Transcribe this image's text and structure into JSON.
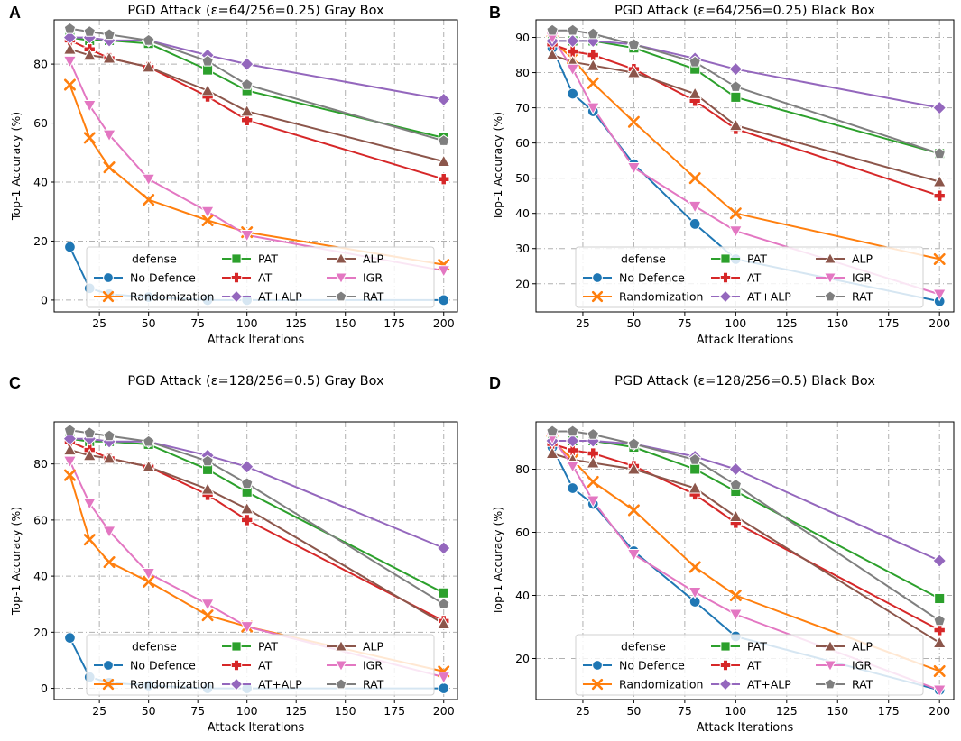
{
  "colors": {
    "No Defence": "#1f77b4",
    "Randomization": "#ff7f0e",
    "PAT": "#2ca02c",
    "AT": "#d62728",
    "AT+ALP": "#9467bd",
    "ALP": "#8c564b",
    "IGR": "#e377c2",
    "RAT": "#7f7f7f"
  },
  "markers": {
    "No Defence": "circle",
    "Randomization": "x",
    "PAT": "square",
    "AT": "plus",
    "AT+ALP": "diamond",
    "ALP": "triangle-up",
    "IGR": "triangle-down",
    "RAT": "pentagon"
  },
  "legend_title": "defense",
  "chart_data": [
    {
      "panel": "A",
      "type": "line",
      "title": "PGD Attack (ε=64/256=0.25) Gray Box",
      "xlabel": "Attack Iterations",
      "ylabel": "Top-1 Accuracy (%)",
      "x": [
        10,
        20,
        30,
        50,
        80,
        100,
        200
      ],
      "xticks": [
        25,
        50,
        75,
        100,
        125,
        150,
        175,
        200
      ],
      "yticks": [
        0,
        20,
        40,
        60,
        80
      ],
      "xlim": [
        2,
        207
      ],
      "ylim": [
        -4,
        95
      ],
      "grid": true,
      "legend_loc": "lower center",
      "series": [
        {
          "name": "No Defence",
          "values": [
            18,
            4,
            2,
            1,
            0,
            0,
            0
          ]
        },
        {
          "name": "Randomization",
          "values": [
            73,
            55,
            45,
            34,
            27,
            23,
            12
          ]
        },
        {
          "name": "PAT",
          "values": [
            89,
            88,
            88,
            87,
            78,
            71,
            55
          ]
        },
        {
          "name": "AT",
          "values": [
            88,
            85,
            82,
            79,
            69,
            61,
            41
          ]
        },
        {
          "name": "AT+ALP",
          "values": [
            89,
            89,
            88,
            88,
            83,
            80,
            68
          ]
        },
        {
          "name": "ALP",
          "values": [
            85,
            83,
            82,
            79,
            71,
            64,
            47
          ]
        },
        {
          "name": "IGR",
          "values": [
            81,
            66,
            56,
            41,
            30,
            22,
            10
          ]
        },
        {
          "name": "RAT",
          "values": [
            92,
            91,
            90,
            88,
            81,
            73,
            54
          ]
        }
      ]
    },
    {
      "panel": "B",
      "type": "line",
      "title": "PGD Attack (ε=64/256=0.25) Black Box",
      "xlabel": "Attack Iterations",
      "ylabel": "Top-1 Accuracy (%)",
      "x": [
        10,
        20,
        30,
        50,
        80,
        100,
        200
      ],
      "xticks": [
        25,
        50,
        75,
        100,
        125,
        150,
        175,
        200
      ],
      "yticks": [
        20,
        30,
        40,
        50,
        60,
        70,
        80,
        90
      ],
      "xlim": [
        2,
        207
      ],
      "ylim": [
        12,
        95
      ],
      "grid": true,
      "legend_loc": "lower center",
      "series": [
        {
          "name": "No Defence",
          "values": [
            87,
            74,
            69,
            54,
            37,
            27,
            15
          ]
        },
        {
          "name": "Randomization",
          "values": [
            89,
            84,
            77,
            66,
            50,
            40,
            27
          ]
        },
        {
          "name": "PAT",
          "values": [
            89,
            89,
            89,
            87,
            81,
            73,
            57
          ]
        },
        {
          "name": "AT",
          "values": [
            88,
            86,
            85,
            81,
            72,
            64,
            45
          ]
        },
        {
          "name": "AT+ALP",
          "values": [
            89,
            89,
            89,
            88,
            84,
            81,
            70
          ]
        },
        {
          "name": "ALP",
          "values": [
            85,
            83,
            82,
            80,
            74,
            65,
            49
          ]
        },
        {
          "name": "IGR",
          "values": [
            90,
            81,
            70,
            53,
            42,
            35,
            17
          ]
        },
        {
          "name": "RAT",
          "values": [
            92,
            92,
            91,
            88,
            83,
            76,
            57
          ]
        }
      ]
    },
    {
      "panel": "C",
      "type": "line",
      "title": "PGD Attack (ε=128/256=0.5) Gray Box",
      "xlabel": "Attack Iterations",
      "ylabel": "Top-1 Accuracy (%)",
      "x": [
        10,
        20,
        30,
        50,
        80,
        100,
        200
      ],
      "xticks": [
        25,
        50,
        75,
        100,
        125,
        150,
        175,
        200
      ],
      "yticks": [
        0,
        20,
        40,
        60,
        80
      ],
      "xlim": [
        2,
        207
      ],
      "ylim": [
        -4,
        95
      ],
      "grid": true,
      "legend_loc": "lower center",
      "series": [
        {
          "name": "No Defence",
          "values": [
            18,
            4,
            2,
            1,
            0,
            0,
            0
          ]
        },
        {
          "name": "Randomization",
          "values": [
            76,
            53,
            45,
            38,
            26,
            22,
            6
          ]
        },
        {
          "name": "PAT",
          "values": [
            89,
            88,
            88,
            87,
            78,
            70,
            34
          ]
        },
        {
          "name": "AT",
          "values": [
            88,
            85,
            82,
            79,
            69,
            60,
            24
          ]
        },
        {
          "name": "AT+ALP",
          "values": [
            89,
            89,
            88,
            88,
            83,
            79,
            50
          ]
        },
        {
          "name": "ALP",
          "values": [
            85,
            83,
            82,
            79,
            71,
            64,
            23
          ]
        },
        {
          "name": "IGR",
          "values": [
            81,
            66,
            56,
            41,
            30,
            22,
            4
          ]
        },
        {
          "name": "RAT",
          "values": [
            92,
            91,
            90,
            88,
            81,
            73,
            30
          ]
        }
      ]
    },
    {
      "panel": "D",
      "type": "line",
      "title": "PGD Attack (ε=128/256=0.5) Black Box",
      "xlabel": "Attack Iterations",
      "ylabel": "Top-1 Accuracy (%)",
      "x": [
        10,
        20,
        30,
        50,
        80,
        100,
        200
      ],
      "xticks": [
        25,
        50,
        75,
        100,
        125,
        150,
        175,
        200
      ],
      "yticks": [
        20,
        40,
        60,
        80
      ],
      "xlim": [
        2,
        207
      ],
      "ylim": [
        7,
        95
      ],
      "grid": true,
      "legend_loc": "lower center",
      "series": [
        {
          "name": "No Defence",
          "values": [
            87,
            74,
            69,
            54,
            38,
            27,
            10
          ]
        },
        {
          "name": "Randomization",
          "values": [
            89,
            83,
            76,
            67,
            49,
            40,
            16
          ]
        },
        {
          "name": "PAT",
          "values": [
            89,
            89,
            89,
            87,
            80,
            73,
            39
          ]
        },
        {
          "name": "AT",
          "values": [
            88,
            86,
            85,
            81,
            72,
            63,
            29
          ]
        },
        {
          "name": "AT+ALP",
          "values": [
            89,
            89,
            89,
            88,
            84,
            80,
            51
          ]
        },
        {
          "name": "ALP",
          "values": [
            85,
            83,
            82,
            80,
            74,
            65,
            25
          ]
        },
        {
          "name": "IGR",
          "values": [
            90,
            81,
            70,
            53,
            41,
            34,
            10
          ]
        },
        {
          "name": "RAT",
          "values": [
            92,
            92,
            91,
            88,
            83,
            75,
            32
          ]
        }
      ]
    }
  ]
}
